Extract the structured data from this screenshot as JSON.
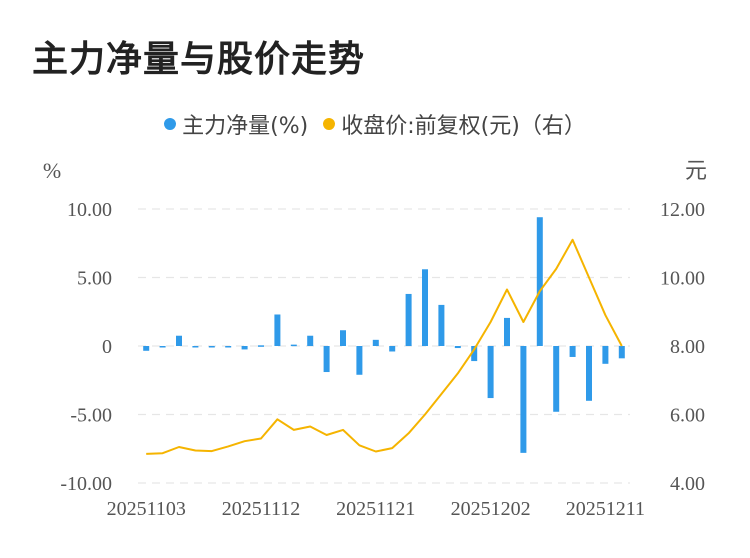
{
  "title": "主力净量与股价走势",
  "colors": {
    "bar": "#2f9ae9",
    "line": "#f5b400",
    "grid": "#e6e6e6",
    "text": "#555555"
  },
  "chart_data": {
    "type": "bar+line",
    "legend": [
      {
        "name": "主力净量(%)",
        "color": "#2f9ae9"
      },
      {
        "name": "收盘价:前复权(元)（右）",
        "color": "#f5b400"
      }
    ],
    "ylabel_left": "%",
    "ylabel_right": "元",
    "ylim_left": [
      -10,
      10
    ],
    "ylim_right": [
      4,
      12
    ],
    "yticks_left": [
      "10.00",
      "5.00",
      "0",
      "-5.00",
      "-10.00"
    ],
    "yticks_right": [
      "12.00",
      "10.00",
      "8.00",
      "6.00",
      "4.00"
    ],
    "xticks": [
      "20251103",
      "20251112",
      "20251121",
      "20251202",
      "20251211"
    ],
    "legend_position": "top",
    "grid": true,
    "bars": [
      -0.35,
      -0.1,
      0.75,
      -0.1,
      -0.1,
      0.0,
      -0.25,
      0.05,
      2.3,
      0.1,
      0.75,
      -1.9,
      1.15,
      -2.1,
      0.45,
      -0.4,
      3.8,
      5.6,
      3.0,
      -0.15,
      -1.1,
      -3.8,
      2.05,
      -7.8,
      9.4,
      -4.8,
      -0.8,
      -4.0,
      -1.3,
      -0.9
    ],
    "price": [
      4.85,
      4.87,
      5.05,
      4.95,
      4.93,
      5.07,
      5.22,
      5.3,
      5.86,
      5.55,
      5.65,
      5.4,
      5.55,
      5.1,
      4.92,
      5.02,
      5.45,
      6.0,
      6.6,
      7.2,
      7.9,
      8.7,
      9.65,
      8.7,
      9.6,
      10.25,
      11.1,
      10.0,
      8.9,
      8.0
    ]
  }
}
